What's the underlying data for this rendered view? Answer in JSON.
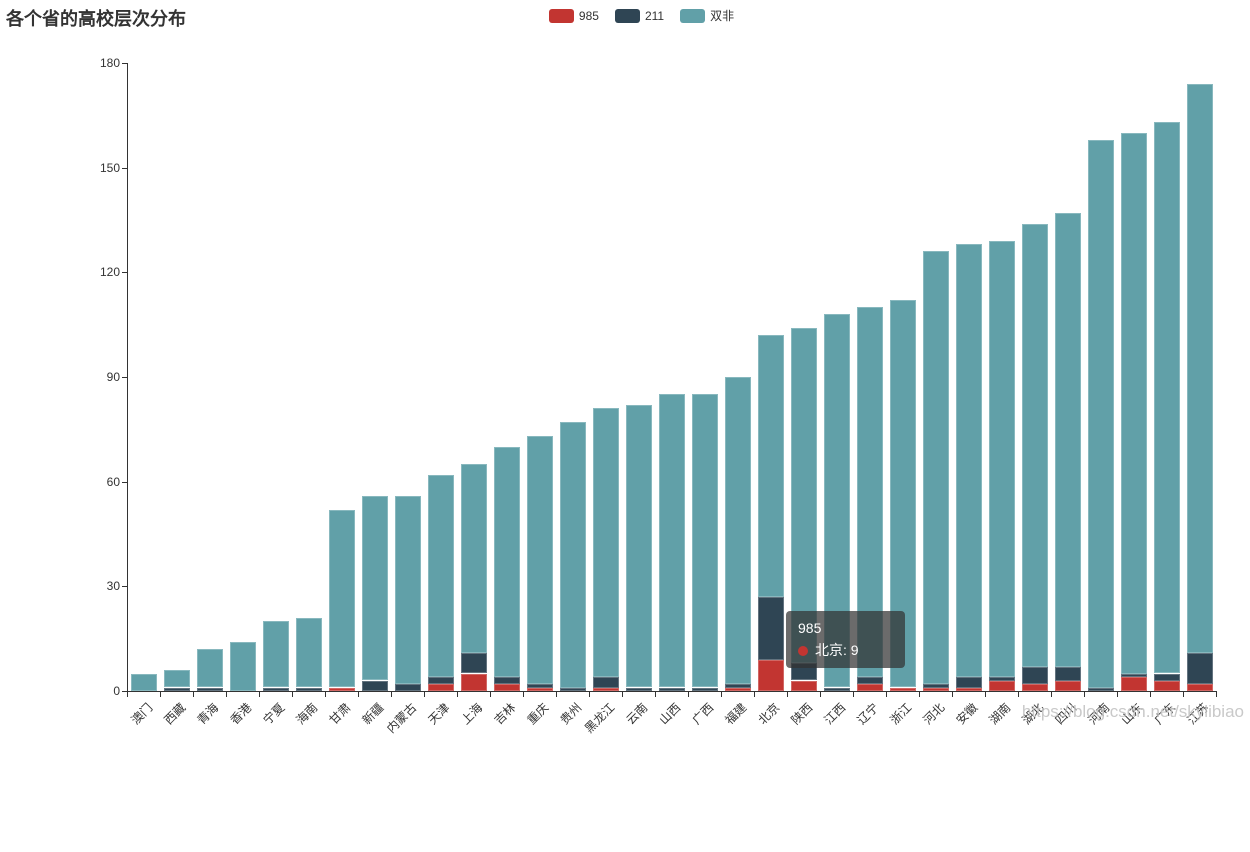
{
  "title": "各个省的高校层次分布",
  "legend": [
    {
      "label": "985",
      "color": "#c23531"
    },
    {
      "label": "211",
      "color": "#2f4554"
    },
    {
      "label": "双非",
      "color": "#61a0a8"
    }
  ],
  "tooltip": {
    "title": "985",
    "label": "北京",
    "value": 9,
    "marker_color": "#c23531"
  },
  "watermark": "https://blog.csdn.net/skylibiao",
  "chart_data": {
    "type": "bar",
    "stacked": true,
    "title": "各个省的高校层次分布",
    "legend_position": "top-center",
    "grid": false,
    "ylim": [
      0,
      180
    ],
    "yticks": [
      0,
      30,
      60,
      90,
      120,
      150,
      180
    ],
    "xlabel": "",
    "ylabel": "",
    "categories": [
      "澳门",
      "西藏",
      "青海",
      "香港",
      "宁夏",
      "海南",
      "甘肃",
      "新疆",
      "内蒙古",
      "天津",
      "上海",
      "吉林",
      "重庆",
      "贵州",
      "黑龙江",
      "云南",
      "山西",
      "广西",
      "福建",
      "北京",
      "陕西",
      "江西",
      "辽宁",
      "浙江",
      "河北",
      "安徽",
      "湖南",
      "湖北",
      "四川",
      "河南",
      "山东",
      "广东",
      "江苏"
    ],
    "series": [
      {
        "name": "985",
        "color": "#c23531",
        "values": [
          0,
          0,
          0,
          0,
          0,
          0,
          1,
          0,
          0,
          2,
          5,
          2,
          1,
          0,
          1,
          0,
          0,
          0,
          1,
          9,
          3,
          0,
          2,
          1,
          1,
          1,
          3,
          2,
          3,
          0,
          4,
          3,
          2
        ]
      },
      {
        "name": "211",
        "color": "#2f4554",
        "values": [
          0,
          1,
          1,
          0,
          1,
          1,
          0,
          3,
          2,
          2,
          6,
          2,
          1,
          1,
          3,
          1,
          1,
          1,
          1,
          18,
          5,
          1,
          2,
          0,
          1,
          3,
          1,
          5,
          4,
          1,
          1,
          2,
          9
        ]
      },
      {
        "name": "双非",
        "color": "#61a0a8",
        "values": [
          5,
          5,
          11,
          14,
          19,
          20,
          51,
          53,
          54,
          58,
          54,
          66,
          71,
          76,
          77,
          81,
          84,
          84,
          88,
          75,
          96,
          107,
          106,
          111,
          124,
          124,
          125,
          127,
          130,
          157,
          155,
          158,
          163
        ]
      }
    ],
    "totals": [
      5,
      6,
      12,
      14,
      20,
      21,
      52,
      56,
      56,
      62,
      65,
      70,
      73,
      77,
      81,
      82,
      85,
      85,
      90,
      102,
      104,
      108,
      110,
      112,
      126,
      128,
      129,
      134,
      137,
      158,
      160,
      163,
      174
    ]
  }
}
